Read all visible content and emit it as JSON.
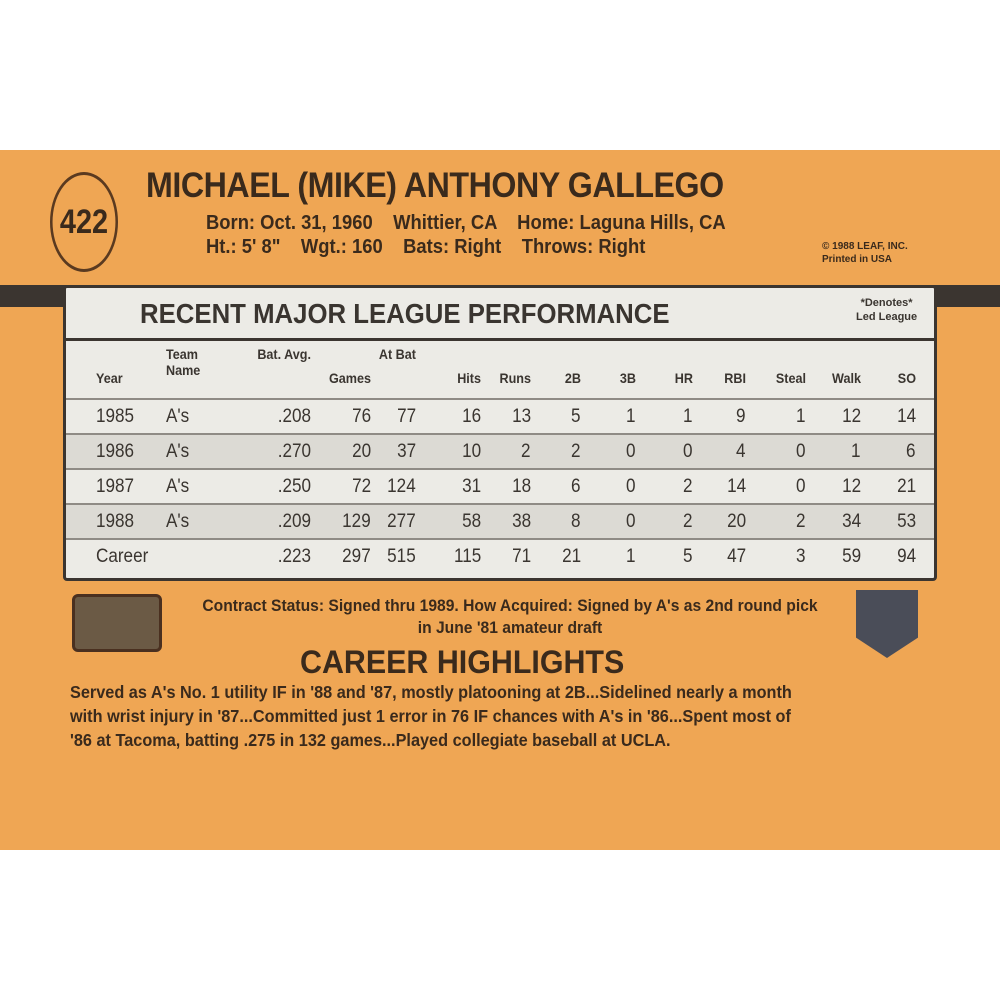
{
  "card_number": "422",
  "player_name": "MICHAEL (MIKE) ANTHONY GALLEGO",
  "bio_line1": "Born: Oct. 31, 1960    Whittier, CA    Home: Laguna Hills, CA",
  "bio_line2": "Ht.: 5' 8\"    Wgt.: 160    Bats: Right    Throws: Right",
  "copyright": [
    "© 1988 LEAF, INC.",
    "Printed in USA"
  ],
  "stats": {
    "title": "RECENT MAJOR LEAGUE PERFORMANCE",
    "note": [
      "*Denotes*",
      "Led League"
    ],
    "headers": [
      "Year",
      "Team Name",
      "Bat. Avg.",
      "Games",
      "At Bat",
      "Hits",
      "Runs",
      "2B",
      "3B",
      "HR",
      "RBI",
      "Steal",
      "Walk",
      "SO"
    ],
    "rows": [
      [
        "1985",
        "A's",
        ".208",
        "76",
        "77",
        "16",
        "13",
        "5",
        "1",
        "1",
        "9",
        "1",
        "12",
        "14"
      ],
      [
        "1986",
        "A's",
        ".270",
        "20",
        "37",
        "10",
        "2",
        "2",
        "0",
        "0",
        "4",
        "0",
        "1",
        "6"
      ],
      [
        "1987",
        "A's",
        ".250",
        "72",
        "124",
        "31",
        "18",
        "6",
        "0",
        "2",
        "14",
        "0",
        "12",
        "21"
      ],
      [
        "1988",
        "A's",
        ".209",
        "129",
        "277",
        "58",
        "38",
        "8",
        "0",
        "2",
        "20",
        "2",
        "34",
        "53"
      ],
      [
        "Career",
        "",
        ".223",
        "297",
        "515",
        "115",
        "71",
        "21",
        "1",
        "5",
        "47",
        "3",
        "59",
        "94"
      ]
    ]
  },
  "contract": "Contract Status: Signed thru 1989. How Acquired: Signed by A's as 2nd round pick in June '81 amateur draft",
  "highlights_title": "CAREER HIGHLIGHTS",
  "highlights": "Served as A's No. 1 utility IF in '88 and '87, mostly platooning at 2B...Sidelined nearly a month\nwith wrist injury in '87...Committed just 1 error in 76 IF chances with A's in '86...Spent most of\n'86 at Tacoma, batting .275 in 132 games...Played collegiate baseball at UCLA.",
  "colors": {
    "card": "#efa654",
    "ink": "#3a2a1c",
    "table": "#ecebe6"
  }
}
